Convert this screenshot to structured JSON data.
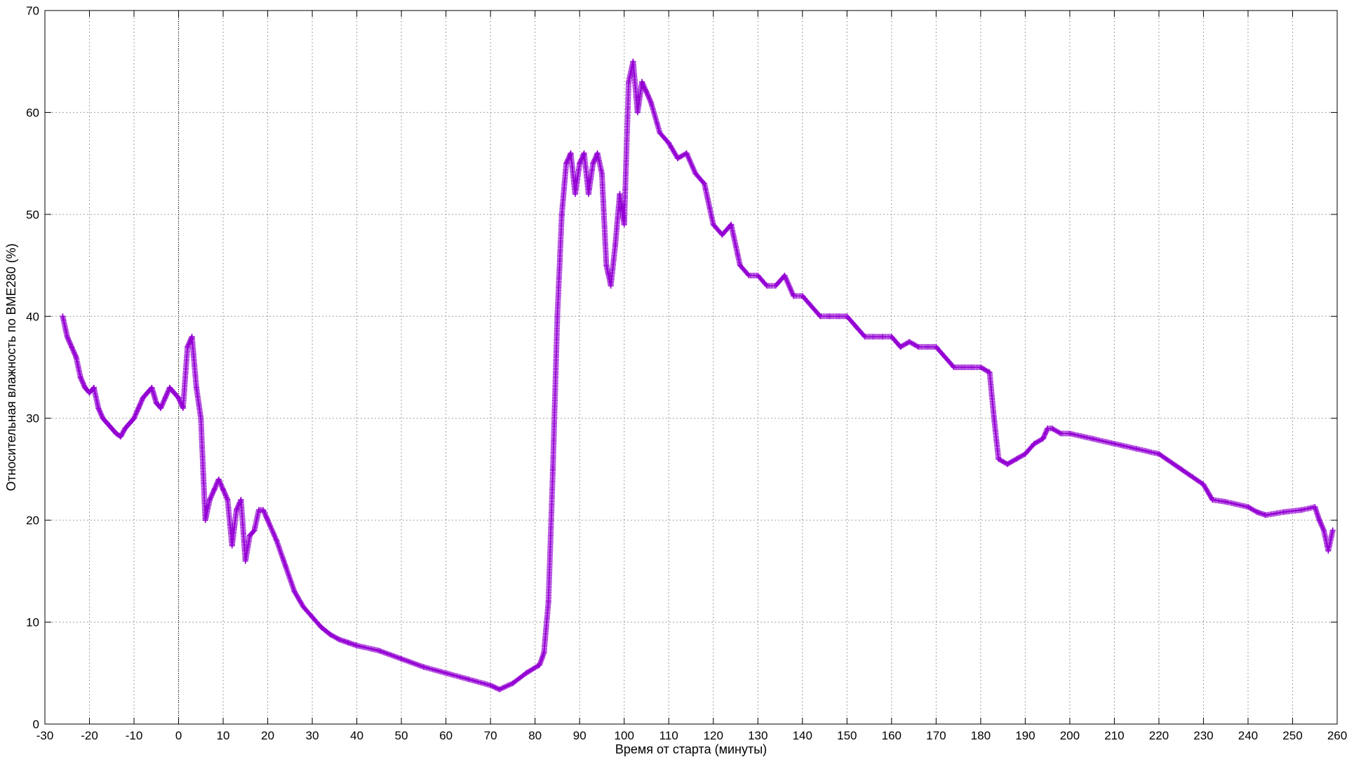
{
  "chart_data": {
    "type": "scatter",
    "title": "",
    "xlabel": "Время от старта (минуты)",
    "ylabel": "Относительная влажность по BME280 (%)",
    "xlim": [
      -30,
      260
    ],
    "ylim": [
      0,
      70
    ],
    "xticks": [
      -30,
      -20,
      -10,
      0,
      10,
      20,
      30,
      40,
      50,
      60,
      70,
      80,
      90,
      100,
      110,
      120,
      130,
      140,
      150,
      160,
      170,
      180,
      190,
      200,
      210,
      220,
      230,
      240,
      250,
      260
    ],
    "yticks": [
      0,
      10,
      20,
      30,
      40,
      50,
      60,
      70
    ],
    "grid": true,
    "zero_line_x": 0,
    "marker": "+",
    "colors": {
      "series": "#9400d3",
      "grid": "#a0a0a0",
      "axis": "#000000"
    },
    "series": [
      {
        "x": [
          -26,
          -25,
          -24,
          -23,
          -22,
          -21,
          -20,
          -19,
          -18,
          -17,
          -16,
          -15,
          -14,
          -13,
          -12,
          -11,
          -10,
          -9,
          -8,
          -7,
          -6,
          -5,
          -4,
          -3,
          -2,
          -1,
          0,
          1,
          2,
          3,
          4,
          5,
          6,
          7,
          8,
          9,
          10,
          11,
          12,
          13,
          14,
          15,
          16,
          17,
          18,
          19,
          20,
          22,
          24,
          26,
          28,
          30,
          32,
          34,
          36,
          38,
          40,
          45,
          50,
          55,
          60,
          65,
          70,
          72,
          75,
          78,
          81,
          82,
          83,
          84,
          85,
          86,
          87,
          88,
          89,
          90,
          91,
          92,
          93,
          94,
          95,
          96,
          97,
          98,
          99,
          100,
          101,
          102,
          103,
          104,
          105,
          106,
          108,
          110,
          112,
          114,
          116,
          118,
          120,
          122,
          124,
          126,
          128,
          130,
          132,
          134,
          136,
          138,
          140,
          142,
          144,
          146,
          148,
          150,
          152,
          154,
          156,
          158,
          160,
          162,
          164,
          166,
          168,
          170,
          172,
          174,
          176,
          178,
          180,
          182,
          183,
          184,
          186,
          188,
          190,
          192,
          194,
          195,
          196,
          198,
          200,
          205,
          210,
          215,
          220,
          225,
          230,
          232,
          235,
          240,
          242,
          244,
          248,
          252,
          255,
          256,
          257,
          258,
          259
        ],
        "y": [
          40,
          38,
          37,
          36,
          34,
          33,
          32.5,
          33,
          31,
          30,
          29.5,
          29,
          28.5,
          28.2,
          29,
          29.5,
          30,
          31,
          32,
          32.5,
          33,
          31.5,
          31,
          32,
          33,
          32.5,
          32,
          31,
          37,
          38,
          33,
          30,
          20,
          22,
          23,
          24,
          23,
          22,
          17.5,
          21,
          22,
          16,
          18.5,
          19,
          21,
          21,
          20,
          18,
          15.5,
          13,
          11.5,
          10.5,
          9.5,
          8.8,
          8.3,
          8,
          7.7,
          7.2,
          6.4,
          5.6,
          5,
          4.4,
          3.8,
          3.4,
          4,
          5,
          5.8,
          7,
          12,
          25,
          40,
          50,
          55,
          56,
          52,
          55,
          56,
          52,
          55,
          56,
          54,
          45,
          43,
          47,
          52,
          49,
          63,
          65,
          60,
          63,
          62,
          61,
          58,
          57,
          55.5,
          56,
          54,
          53,
          49,
          48,
          49,
          45,
          44,
          44,
          43,
          43,
          44,
          42,
          42,
          41,
          40,
          40,
          40,
          40,
          39,
          38,
          38,
          38,
          38,
          37,
          37.5,
          37,
          37,
          37,
          36,
          35,
          35,
          35,
          35,
          34.5,
          30,
          26,
          25.5,
          26,
          26.5,
          27.5,
          28,
          29,
          29,
          28.5,
          28.5,
          28,
          27.5,
          27,
          26.5,
          25,
          23.5,
          22,
          21.8,
          21.3,
          20.8,
          20.5,
          20.8,
          21,
          21.3,
          20,
          19,
          17,
          19
        ]
      }
    ]
  }
}
